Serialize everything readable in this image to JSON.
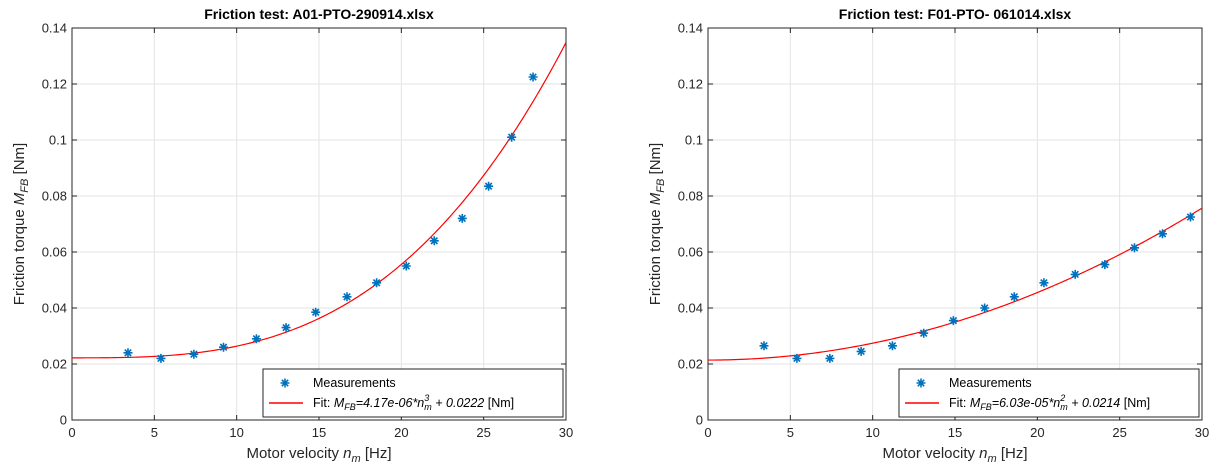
{
  "chart_data": [
    {
      "type": "scatter",
      "title": "Friction test: A01-PTO-290914.xlsx",
      "xlabel": {
        "text": "Motor velocity ",
        "sym": "n",
        "sub": "m",
        "unit": " [Hz]"
      },
      "ylabel": {
        "text": "Friction torque ",
        "sym": "M",
        "sub": "FB",
        "unit": " [Nm]"
      },
      "xlim": [
        0,
        30
      ],
      "ylim": [
        0,
        0.14
      ],
      "xticks": [
        0,
        5,
        10,
        15,
        20,
        25,
        30
      ],
      "xtick_labels": [
        "0",
        "5",
        "10",
        "15",
        "20",
        "25",
        "30"
      ],
      "yticks": [
        0,
        0.02,
        0.04,
        0.06,
        0.08,
        0.1,
        0.12,
        0.14
      ],
      "ytick_labels": [
        "0",
        "0.02",
        "0.04",
        "0.06",
        "0.08",
        "0.1",
        "0.12",
        "0.14"
      ],
      "grid": true,
      "legend_position": "bottom-right",
      "series": [
        {
          "name": "Measurements",
          "kind": "scatter",
          "marker": "asterisk",
          "color": "#0072BD",
          "x": [
            3.4,
            5.4,
            7.4,
            9.2,
            11.2,
            13.0,
            14.8,
            16.7,
            18.5,
            20.3,
            22.0,
            23.7,
            25.3,
            26.7,
            28.0
          ],
          "y": [
            0.024,
            0.022,
            0.0235,
            0.026,
            0.029,
            0.033,
            0.0385,
            0.044,
            0.049,
            0.055,
            0.064,
            0.072,
            0.0835,
            0.101,
            0.1225
          ]
        },
        {
          "name_parts": {
            "prefix": "Fit: ",
            "sym": "M",
            "sub": "FB",
            "mid": "=4.17e-06*n",
            "sup": "3",
            "sub2": "m",
            "tail": " + 0.0222",
            "unit": " [Nm]"
          },
          "kind": "line",
          "color": "#FF0000",
          "fit": {
            "a": 4.17e-06,
            "power": 3,
            "c": 0.0222
          }
        }
      ]
    },
    {
      "type": "scatter",
      "title": "Friction test: F01-PTO- 061014.xlsx",
      "xlabel": {
        "text": "Motor velocity ",
        "sym": "n",
        "sub": "m",
        "unit": " [Hz]"
      },
      "ylabel": {
        "text": "Friction torque ",
        "sym": "M",
        "sub": "FB",
        "unit": " [Nm]"
      },
      "xlim": [
        0,
        30
      ],
      "ylim": [
        0,
        0.14
      ],
      "xticks": [
        0,
        5,
        10,
        15,
        20,
        25,
        30
      ],
      "xtick_labels": [
        "0",
        "5",
        "10",
        "15",
        "20",
        "25",
        "30"
      ],
      "yticks": [
        0,
        0.02,
        0.04,
        0.06,
        0.08,
        0.1,
        0.12,
        0.14
      ],
      "ytick_labels": [
        "0",
        "0.02",
        "0.04",
        "0.06",
        "0.08",
        "0.1",
        "0.12",
        "0.14"
      ],
      "grid": true,
      "legend_position": "bottom-right",
      "series": [
        {
          "name": "Measurements",
          "kind": "scatter",
          "marker": "asterisk",
          "color": "#0072BD",
          "x": [
            3.4,
            5.4,
            7.4,
            9.3,
            11.2,
            13.1,
            14.9,
            16.8,
            18.6,
            20.4,
            22.3,
            24.1,
            25.9,
            27.6,
            29.3
          ],
          "y": [
            0.0265,
            0.022,
            0.022,
            0.0245,
            0.0265,
            0.031,
            0.0355,
            0.04,
            0.044,
            0.049,
            0.052,
            0.0555,
            0.0615,
            0.0665,
            0.0725
          ]
        },
        {
          "name_parts": {
            "prefix": "Fit: ",
            "sym": "M",
            "sub": "FB",
            "mid": "=6.03e-05*n",
            "sup": "2",
            "sub2": "m",
            "tail": " + 0.0214",
            "unit": " [Nm]"
          },
          "kind": "line",
          "color": "#FF0000",
          "fit": {
            "a": 6.03e-05,
            "power": 2,
            "c": 0.0214
          }
        }
      ]
    }
  ]
}
